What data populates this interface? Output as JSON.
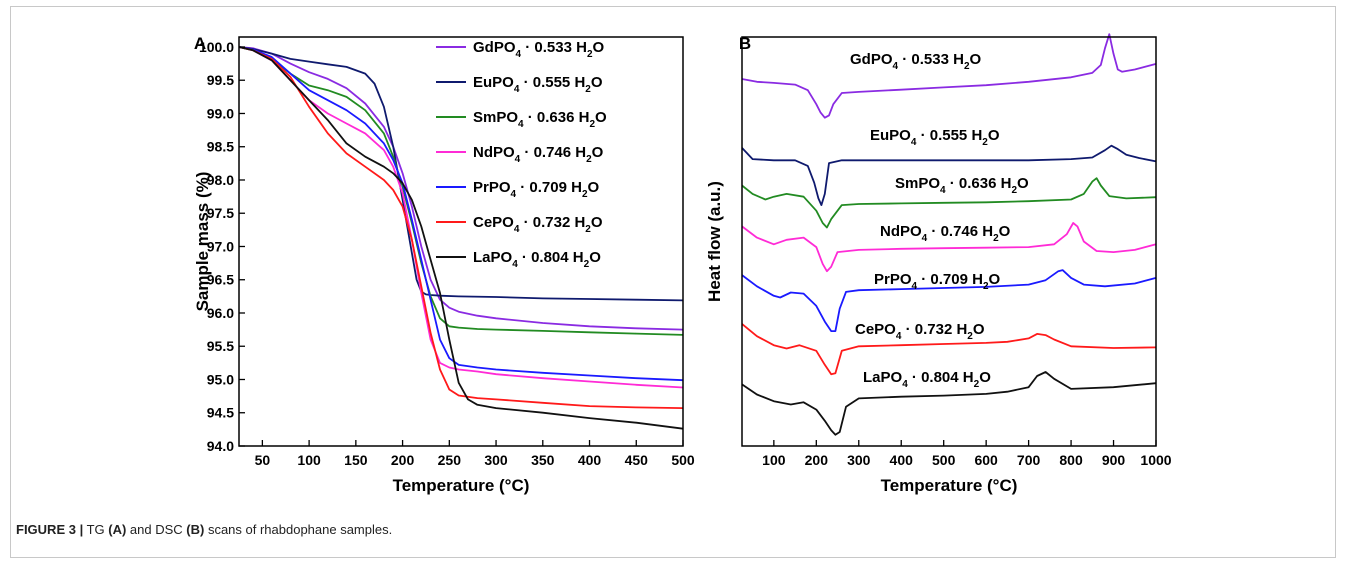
{
  "caption": {
    "figure_label": "FIGURE 3 |",
    "text_1": " TG ",
    "a_ref": "(A)",
    "text_2": " and DSC ",
    "b_ref": "(B)",
    "text_3": " scans of rhabdophane samples."
  },
  "chart_data": [
    {
      "panel": "A",
      "type": "line",
      "xlabel": "Temperature (°C)",
      "ylabel": "Sample mass (%)",
      "xlim": [
        25,
        500
      ],
      "ylim": [
        94.0,
        100.15
      ],
      "xticks": [
        50,
        100,
        150,
        200,
        250,
        300,
        350,
        400,
        450,
        500
      ],
      "yticks": [
        94.0,
        94.5,
        95.0,
        95.5,
        96.0,
        96.5,
        97.0,
        97.5,
        98.0,
        98.5,
        99.0,
        99.5,
        100.0
      ],
      "legend_position": "top-right",
      "series": [
        {
          "name": "GdPO4 · 0.533 H2O",
          "formula": "GdPO",
          "sub": "4",
          "suffix": " · 0.533 H",
          "sub2": "2",
          "tail": "O",
          "color": "#8a2be2",
          "x": [
            25,
            40,
            60,
            80,
            100,
            120,
            140,
            160,
            180,
            190,
            200,
            210,
            220,
            230,
            240,
            250,
            260,
            280,
            300,
            350,
            400,
            450,
            500
          ],
          "y": [
            100.0,
            99.98,
            99.9,
            99.75,
            99.62,
            99.52,
            99.38,
            99.15,
            98.8,
            98.5,
            98.1,
            97.6,
            97.0,
            96.5,
            96.2,
            96.08,
            96.02,
            95.96,
            95.92,
            95.85,
            95.8,
            95.77,
            95.75
          ]
        },
        {
          "name": "EuPO4 · 0.555 H2O",
          "formula": "EuPO",
          "sub": "4",
          "suffix": " · 0.555 H",
          "sub2": "2",
          "tail": "O",
          "color": "#0f1a6e",
          "x": [
            25,
            40,
            60,
            80,
            100,
            120,
            140,
            160,
            170,
            180,
            190,
            200,
            210,
            215,
            220,
            225,
            230,
            240,
            260,
            300,
            350,
            400,
            450,
            500
          ],
          "y": [
            100.0,
            99.97,
            99.9,
            99.82,
            99.78,
            99.74,
            99.7,
            99.6,
            99.45,
            99.1,
            98.5,
            97.7,
            96.9,
            96.5,
            96.32,
            96.28,
            96.27,
            96.26,
            96.25,
            96.24,
            96.22,
            96.21,
            96.2,
            96.19
          ]
        },
        {
          "name": "SmPO4 · 0.636 H2O",
          "formula": "SmPO",
          "sub": "4",
          "suffix": " · 0.636 H",
          "sub2": "2",
          "tail": "O",
          "color": "#228b22",
          "x": [
            25,
            40,
            60,
            80,
            100,
            120,
            140,
            160,
            180,
            190,
            200,
            210,
            220,
            230,
            240,
            250,
            260,
            280,
            300,
            350,
            400,
            450,
            500
          ],
          "y": [
            100.0,
            99.95,
            99.82,
            99.6,
            99.42,
            99.35,
            99.25,
            99.05,
            98.7,
            98.35,
            97.9,
            97.35,
            96.75,
            96.25,
            95.92,
            95.8,
            95.78,
            95.76,
            95.75,
            95.73,
            95.71,
            95.69,
            95.67
          ]
        },
        {
          "name": "NdPO4 · 0.746 H2O",
          "formula": "NdPO",
          "sub": "4",
          "suffix": " · 0.746 H",
          "sub2": "2",
          "tail": "O",
          "color": "#ff2bd6",
          "x": [
            25,
            40,
            60,
            80,
            100,
            120,
            140,
            160,
            180,
            190,
            200,
            210,
            220,
            230,
            240,
            250,
            260,
            280,
            300,
            350,
            400,
            450,
            500
          ],
          "y": [
            100.0,
            99.95,
            99.8,
            99.5,
            99.2,
            99.0,
            98.85,
            98.7,
            98.45,
            98.2,
            97.8,
            97.1,
            96.3,
            95.6,
            95.25,
            95.18,
            95.15,
            95.12,
            95.08,
            95.02,
            94.97,
            94.92,
            94.88
          ]
        },
        {
          "name": "PrPO4 · 0.709 H2O",
          "formula": "PrPO",
          "sub": "4",
          "suffix": " · 0.709 H",
          "sub2": "2",
          "tail": "O",
          "color": "#1a1aff",
          "x": [
            25,
            40,
            60,
            80,
            100,
            120,
            140,
            160,
            180,
            190,
            200,
            210,
            220,
            230,
            240,
            250,
            260,
            280,
            300,
            350,
            400,
            450,
            500
          ],
          "y": [
            100.0,
            99.96,
            99.85,
            99.6,
            99.35,
            99.2,
            99.05,
            98.85,
            98.55,
            98.3,
            97.95,
            97.4,
            96.8,
            96.2,
            95.6,
            95.32,
            95.22,
            95.18,
            95.15,
            95.1,
            95.06,
            95.02,
            94.99
          ]
        },
        {
          "name": "CePO4 · 0.732 H2O",
          "formula": "CePO",
          "sub": "4",
          "suffix": " · 0.732 H",
          "sub2": "2",
          "tail": "O",
          "color": "#ff1a1a",
          "x": [
            25,
            40,
            60,
            80,
            100,
            120,
            140,
            160,
            180,
            190,
            200,
            210,
            220,
            230,
            240,
            250,
            260,
            280,
            300,
            350,
            400,
            450,
            500
          ],
          "y": [
            100.0,
            99.95,
            99.82,
            99.55,
            99.1,
            98.7,
            98.4,
            98.2,
            98.0,
            97.85,
            97.6,
            97.1,
            96.4,
            95.7,
            95.15,
            94.85,
            94.76,
            94.72,
            94.7,
            94.65,
            94.6,
            94.58,
            94.57
          ]
        },
        {
          "name": "LaPO4 · 0.804 H2O",
          "formula": "LaPO",
          "sub": "4",
          "suffix": " · 0.804 H",
          "sub2": "2",
          "tail": "O",
          "color": "#111111",
          "x": [
            25,
            40,
            60,
            80,
            100,
            120,
            140,
            160,
            180,
            190,
            200,
            210,
            220,
            230,
            240,
            250,
            260,
            270,
            280,
            300,
            350,
            400,
            450,
            500
          ],
          "y": [
            100.0,
            99.95,
            99.8,
            99.5,
            99.2,
            98.9,
            98.55,
            98.35,
            98.2,
            98.1,
            97.95,
            97.7,
            97.3,
            96.8,
            96.3,
            95.6,
            94.95,
            94.7,
            94.62,
            94.57,
            94.5,
            94.42,
            94.35,
            94.26
          ]
        }
      ]
    },
    {
      "panel": "B",
      "type": "line",
      "xlabel": "Temperature (°C)",
      "ylabel": "Heat flow (a.u.)",
      "xlim": [
        25,
        1000
      ],
      "ylim": [
        0,
        7.3
      ],
      "xticks": [
        100,
        200,
        300,
        400,
        500,
        600,
        700,
        800,
        900,
        1000
      ],
      "series": [
        {
          "name": "GdPO4 · 0.533 H2O",
          "formula": "GdPO",
          "sub": "4",
          "suffix": " · 0.533 H",
          "sub2": "2",
          "tail": "O",
          "color": "#8a2be2",
          "x": [
            25,
            60,
            100,
            150,
            180,
            200,
            210,
            220,
            230,
            240,
            260,
            300,
            400,
            500,
            600,
            700,
            800,
            850,
            870,
            880,
            890,
            900,
            910,
            920,
            950,
            1000
          ],
          "y": [
            6.55,
            6.5,
            6.48,
            6.45,
            6.35,
            6.1,
            5.95,
            5.86,
            5.9,
            6.1,
            6.3,
            6.32,
            6.36,
            6.4,
            6.44,
            6.5,
            6.58,
            6.66,
            6.8,
            7.1,
            7.35,
            7.0,
            6.72,
            6.68,
            6.72,
            6.82
          ]
        },
        {
          "name": "EuPO4 · 0.555 H2O",
          "formula": "EuPO",
          "sub": "4",
          "suffix": " · 0.555 H",
          "sub2": "2",
          "tail": "O",
          "color": "#0f1a6e",
          "x": [
            25,
            50,
            100,
            150,
            180,
            195,
            205,
            212,
            220,
            230,
            260,
            300,
            400,
            500,
            600,
            700,
            800,
            850,
            880,
            895,
            910,
            930,
            960,
            1000
          ],
          "y": [
            5.32,
            5.12,
            5.1,
            5.1,
            5.0,
            4.7,
            4.42,
            4.3,
            4.5,
            5.05,
            5.1,
            5.1,
            5.1,
            5.1,
            5.1,
            5.1,
            5.12,
            5.15,
            5.28,
            5.36,
            5.3,
            5.2,
            5.14,
            5.08
          ]
        },
        {
          "name": "SmPO4 · 0.636 H2O",
          "formula": "SmPO",
          "sub": "4",
          "suffix": " · 0.636 H",
          "sub2": "2",
          "tail": "O",
          "color": "#228b22",
          "x": [
            25,
            50,
            80,
            100,
            130,
            170,
            200,
            215,
            225,
            235,
            260,
            300,
            400,
            500,
            600,
            700,
            800,
            830,
            850,
            860,
            870,
            890,
            930,
            1000
          ],
          "y": [
            4.65,
            4.5,
            4.4,
            4.45,
            4.5,
            4.45,
            4.2,
            3.98,
            3.9,
            4.05,
            4.3,
            4.32,
            4.33,
            4.34,
            4.35,
            4.37,
            4.4,
            4.5,
            4.72,
            4.78,
            4.65,
            4.46,
            4.42,
            4.44
          ]
        },
        {
          "name": "NdPO4 · 0.746 H2O",
          "formula": "NdPO",
          "sub": "4",
          "suffix": " · 0.746 H",
          "sub2": "2",
          "tail": "O",
          "color": "#ff2bd6",
          "x": [
            25,
            60,
            100,
            130,
            170,
            200,
            215,
            225,
            235,
            250,
            300,
            400,
            500,
            600,
            700,
            760,
            790,
            805,
            815,
            830,
            860,
            900,
            950,
            1000
          ],
          "y": [
            3.92,
            3.72,
            3.6,
            3.68,
            3.72,
            3.55,
            3.25,
            3.12,
            3.2,
            3.46,
            3.5,
            3.52,
            3.53,
            3.54,
            3.55,
            3.6,
            3.78,
            3.98,
            3.92,
            3.65,
            3.48,
            3.46,
            3.5,
            3.6
          ]
        },
        {
          "name": "PrPO4 · 0.709 H2O",
          "formula": "PrPO",
          "sub": "4",
          "suffix": " · 0.709 H",
          "sub2": "2",
          "tail": "O",
          "color": "#1a1aff",
          "x": [
            25,
            60,
            100,
            115,
            140,
            170,
            200,
            220,
            235,
            245,
            255,
            270,
            300,
            400,
            500,
            600,
            700,
            740,
            770,
            780,
            800,
            830,
            880,
            950,
            1000
          ],
          "y": [
            3.05,
            2.85,
            2.68,
            2.65,
            2.74,
            2.72,
            2.5,
            2.22,
            2.05,
            2.05,
            2.45,
            2.75,
            2.78,
            2.8,
            2.82,
            2.84,
            2.88,
            2.96,
            3.12,
            3.14,
            3.0,
            2.88,
            2.85,
            2.9,
            3.0
          ]
        },
        {
          "name": "CePO4 · 0.732 H2O",
          "formula": "CePO",
          "sub": "4",
          "suffix": " · 0.732 H",
          "sub2": "2",
          "tail": "O",
          "color": "#ff1a1a",
          "x": [
            25,
            60,
            100,
            130,
            160,
            200,
            220,
            235,
            245,
            260,
            300,
            400,
            500,
            600,
            650,
            700,
            720,
            740,
            760,
            800,
            900,
            1000
          ],
          "y": [
            2.18,
            1.96,
            1.8,
            1.74,
            1.8,
            1.7,
            1.45,
            1.28,
            1.3,
            1.7,
            1.78,
            1.8,
            1.82,
            1.84,
            1.86,
            1.92,
            2.0,
            1.98,
            1.9,
            1.78,
            1.75,
            1.76
          ]
        },
        {
          "name": "LaPO4 · 0.804 H2O",
          "formula": "LaPO",
          "sub": "4",
          "suffix": " · 0.804 H",
          "sub2": "2",
          "tail": "O",
          "color": "#111111",
          "x": [
            25,
            60,
            100,
            140,
            170,
            200,
            220,
            235,
            245,
            255,
            270,
            300,
            400,
            500,
            600,
            650,
            700,
            720,
            740,
            760,
            800,
            900,
            1000
          ],
          "y": [
            1.1,
            0.92,
            0.8,
            0.74,
            0.78,
            0.65,
            0.45,
            0.28,
            0.2,
            0.25,
            0.7,
            0.85,
            0.88,
            0.9,
            0.93,
            0.97,
            1.05,
            1.25,
            1.32,
            1.2,
            1.02,
            1.05,
            1.12
          ]
        }
      ]
    }
  ]
}
